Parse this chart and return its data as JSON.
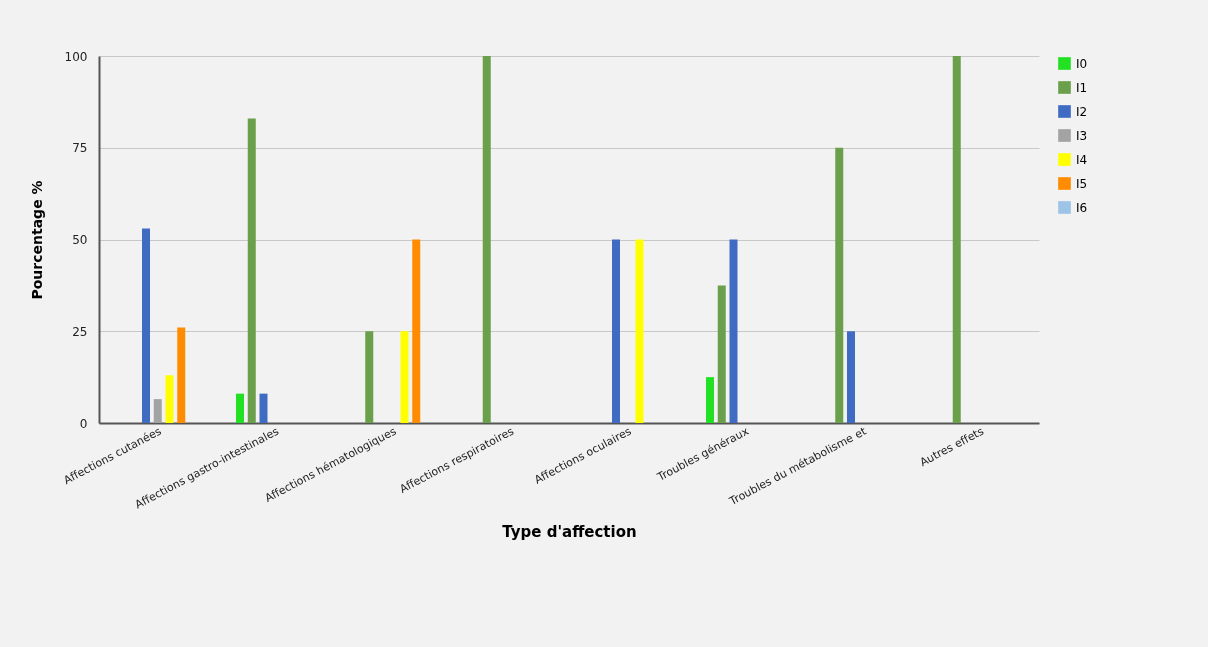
{
  "chart_data": {
    "type": "bar",
    "xlabel": "Type d'affection",
    "ylabel": "Pourcentage %",
    "categories": [
      "Affections cutanées",
      "Affections gastro-intestinales",
      "Affections hématologiques",
      "Affections respiratoires",
      "Affections oculaires",
      "Troubles généraux",
      "Troubles du métabolisme et",
      "Autres effets"
    ],
    "series": [
      {
        "name": "I0",
        "color": "#22e022",
        "values": [
          0,
          8,
          0,
          0,
          0,
          12.5,
          0,
          0
        ]
      },
      {
        "name": "I1",
        "color": "#6a9f4c",
        "values": [
          0,
          83,
          25,
          100,
          0,
          37.5,
          75,
          100
        ]
      },
      {
        "name": "I2",
        "color": "#3f6cc2",
        "values": [
          53,
          8,
          0,
          0,
          50,
          50,
          25,
          0
        ]
      },
      {
        "name": "I3",
        "color": "#a3a3a3",
        "values": [
          6.5,
          0,
          0,
          0,
          0,
          0,
          0,
          0
        ]
      },
      {
        "name": "I4",
        "color": "#ffff00",
        "values": [
          13,
          0,
          25,
          0,
          50,
          0,
          0,
          0
        ]
      },
      {
        "name": "I5",
        "color": "#ff8c00",
        "values": [
          26,
          0,
          50,
          0,
          0,
          0,
          0,
          0
        ]
      },
      {
        "name": "I6",
        "color": "#9dc3e6",
        "values": [
          0,
          0,
          0,
          0,
          0,
          0,
          0,
          0
        ]
      }
    ],
    "ylim": [
      0,
      100
    ],
    "yticks": [
      0,
      25,
      50,
      75,
      100
    ],
    "grid": "y",
    "legend": "top right"
  }
}
